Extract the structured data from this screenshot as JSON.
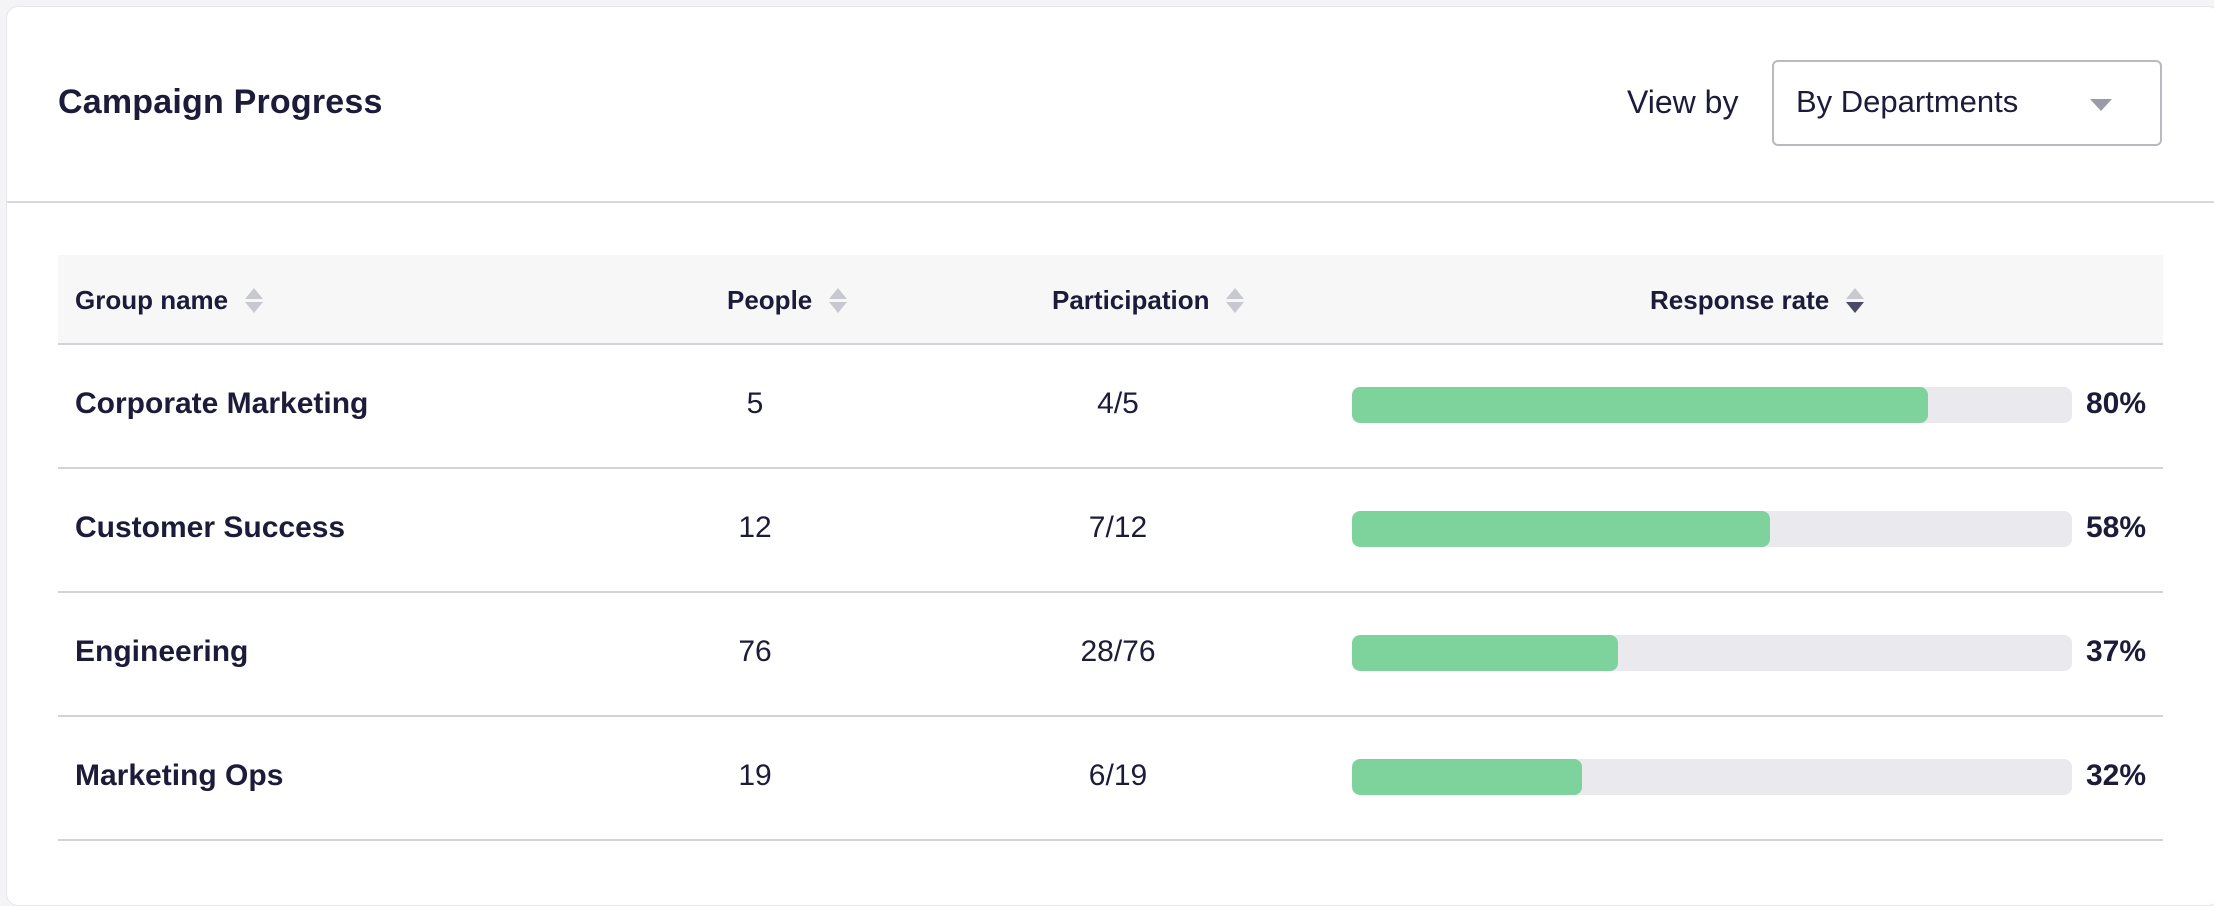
{
  "header": {
    "title": "Campaign Progress",
    "view_by_label": "View by",
    "view_by_value": "By Departments"
  },
  "table": {
    "columns": {
      "group_name": "Group name",
      "people": "People",
      "participation": "Participation",
      "response_rate": "Response rate"
    },
    "sort_column": "response_rate",
    "sort_direction": "descending",
    "rows": [
      {
        "name": "Corporate Marketing",
        "people": "5",
        "participation": "4/5",
        "rate_label": "80%",
        "rate": 80
      },
      {
        "name": "Customer Success",
        "people": "12",
        "participation": "7/12",
        "rate_label": "58%",
        "rate": 58
      },
      {
        "name": "Engineering",
        "people": "76",
        "participation": "28/76",
        "rate_label": "37%",
        "rate": 37
      },
      {
        "name": "Marketing Ops",
        "people": "19",
        "participation": "6/19",
        "rate_label": "32%",
        "rate": 32
      }
    ]
  },
  "colors": {
    "bar_fill": "#7ed29c",
    "bar_track": "#e9e9ee",
    "text": "#1c1b3a"
  }
}
